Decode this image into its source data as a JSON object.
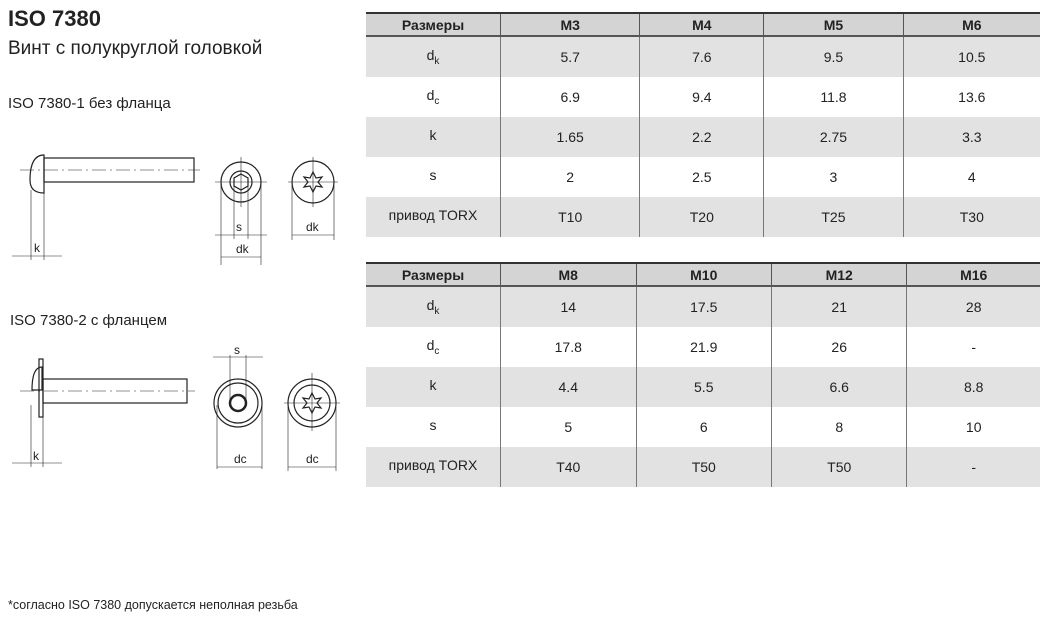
{
  "title": "ISO 7380",
  "subtitle": "Винт с полукруглой головкой",
  "variant1": "ISO 7380-1 без фланца",
  "variant2": "ISO 7380-2 с фланцем",
  "drawing_labels": {
    "k": "k",
    "s": "s",
    "dk": "dk",
    "dc": "dc"
  },
  "table1": {
    "headers": [
      "Размеры",
      "M3",
      "M4",
      "M5",
      "M6"
    ],
    "rows": [
      {
        "label": "d",
        "sub": "k",
        "values": [
          "5.7",
          "7.6",
          "9.5",
          "10.5"
        ]
      },
      {
        "label": "d",
        "sub": "c",
        "values": [
          "6.9",
          "9.4",
          "11.8",
          "13.6"
        ]
      },
      {
        "label": "k",
        "sub": "",
        "values": [
          "1.65",
          "2.2",
          "2.75",
          "3.3"
        ]
      },
      {
        "label": "s",
        "sub": "",
        "values": [
          "2",
          "2.5",
          "3",
          "4"
        ]
      },
      {
        "label": "привод TORX",
        "sub": "",
        "values": [
          "T10",
          "T20",
          "T25",
          "T30"
        ]
      }
    ]
  },
  "table2": {
    "headers": [
      "Размеры",
      "M8",
      "M10",
      "M12",
      "M16"
    ],
    "rows": [
      {
        "label": "d",
        "sub": "k",
        "values": [
          "14",
          "17.5",
          "21",
          "28"
        ]
      },
      {
        "label": "d",
        "sub": "c",
        "values": [
          "17.8",
          "21.9",
          "26",
          "-"
        ]
      },
      {
        "label": "k",
        "sub": "",
        "values": [
          "4.4",
          "5.5",
          "6.6",
          "8.8"
        ]
      },
      {
        "label": "s",
        "sub": "",
        "values": [
          "5",
          "6",
          "8",
          "10"
        ]
      },
      {
        "label": "привод TORX",
        "sub": "",
        "values": [
          "T40",
          "T50",
          "T50",
          "-"
        ]
      }
    ]
  },
  "footnote": "*согласно ISO 7380 допускается неполная резьба"
}
